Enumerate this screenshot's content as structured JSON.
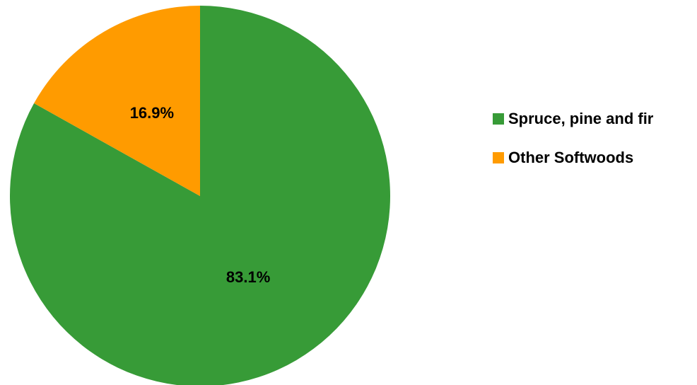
{
  "chart_data": {
    "type": "pie",
    "title": "",
    "categories": [
      "Spruce, pine and fir",
      "Other Softwoods"
    ],
    "values": [
      83.1,
      16.9
    ],
    "data_labels": [
      "83.1%",
      "16.9%"
    ],
    "colors": [
      "#379b37",
      "#ff9b00"
    ],
    "legend": {
      "placement": "right",
      "items": [
        {
          "label": "Spruce, pine and fir",
          "color": "#379b37"
        },
        {
          "label": "Other Softwoods",
          "color": "#ff9b00"
        }
      ]
    }
  }
}
